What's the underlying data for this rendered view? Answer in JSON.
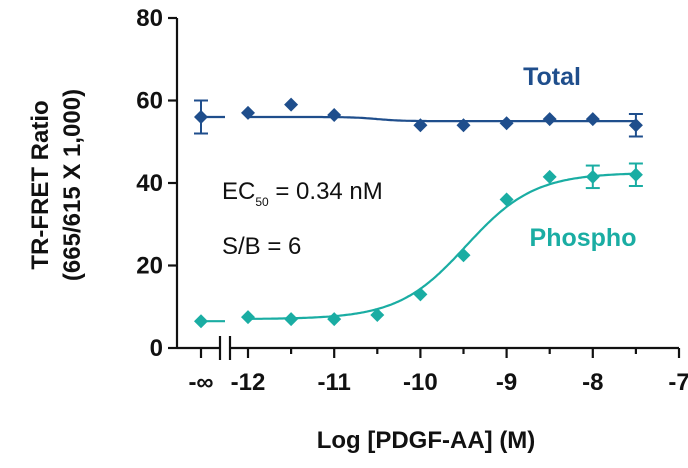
{
  "chart_data": {
    "type": "scatter",
    "xlabel": "Log [PDGF-AA] (M)",
    "ylabel_line1": "TR-FRET Ratio",
    "ylabel_line2": "(665/615 X 1,000)",
    "xlim": [
      -12.5,
      -7
    ],
    "ylim": [
      0,
      80
    ],
    "yticks": [
      0,
      20,
      40,
      60,
      80
    ],
    "xticks": [
      -12,
      -11,
      -10,
      -9,
      -8,
      -7
    ],
    "xtick_labels": [
      "-12",
      "-11",
      "-10",
      "-9",
      "-8",
      "-7"
    ],
    "x_break_label": "-∞",
    "annotations": {
      "ec50_main": "EC",
      "ec50_sub": "50",
      "ec50_rest": " = 0.34 nM",
      "sb": "S/B = 6"
    },
    "series": [
      {
        "name": "Total",
        "color": "#1f4e8c",
        "baseline": {
          "y": 56,
          "err": 4
        },
        "x": [
          -12,
          -11.5,
          -11,
          -10,
          -9.5,
          -9,
          -8.5,
          -8,
          -7.5
        ],
        "y": [
          57,
          59,
          56.5,
          54,
          54,
          54.5,
          55.5,
          55.5,
          54
        ],
        "err": [
          0,
          0,
          0,
          0,
          0,
          0,
          0,
          0,
          2
        ],
        "fit": {
          "bottom": 56,
          "top": 55,
          "log_ec50": -10.5,
          "hill": 3
        }
      },
      {
        "name": "Phospho",
        "color": "#1aada3",
        "baseline": {
          "y": 6.5,
          "err": 0
        },
        "x": [
          -12,
          -11.5,
          -11,
          -10.5,
          -10,
          -9.5,
          -9,
          -8.5,
          -8,
          -7.5
        ],
        "y": [
          7.5,
          7,
          7,
          8,
          13,
          22.5,
          36,
          41.5,
          41.5,
          42
        ],
        "err": [
          0,
          0,
          0,
          0,
          0,
          0,
          0,
          0,
          2,
          2
        ],
        "fit": {
          "bottom": 7,
          "top": 42.5,
          "log_ec50": -9.47,
          "hill": 1.1
        }
      }
    ]
  }
}
